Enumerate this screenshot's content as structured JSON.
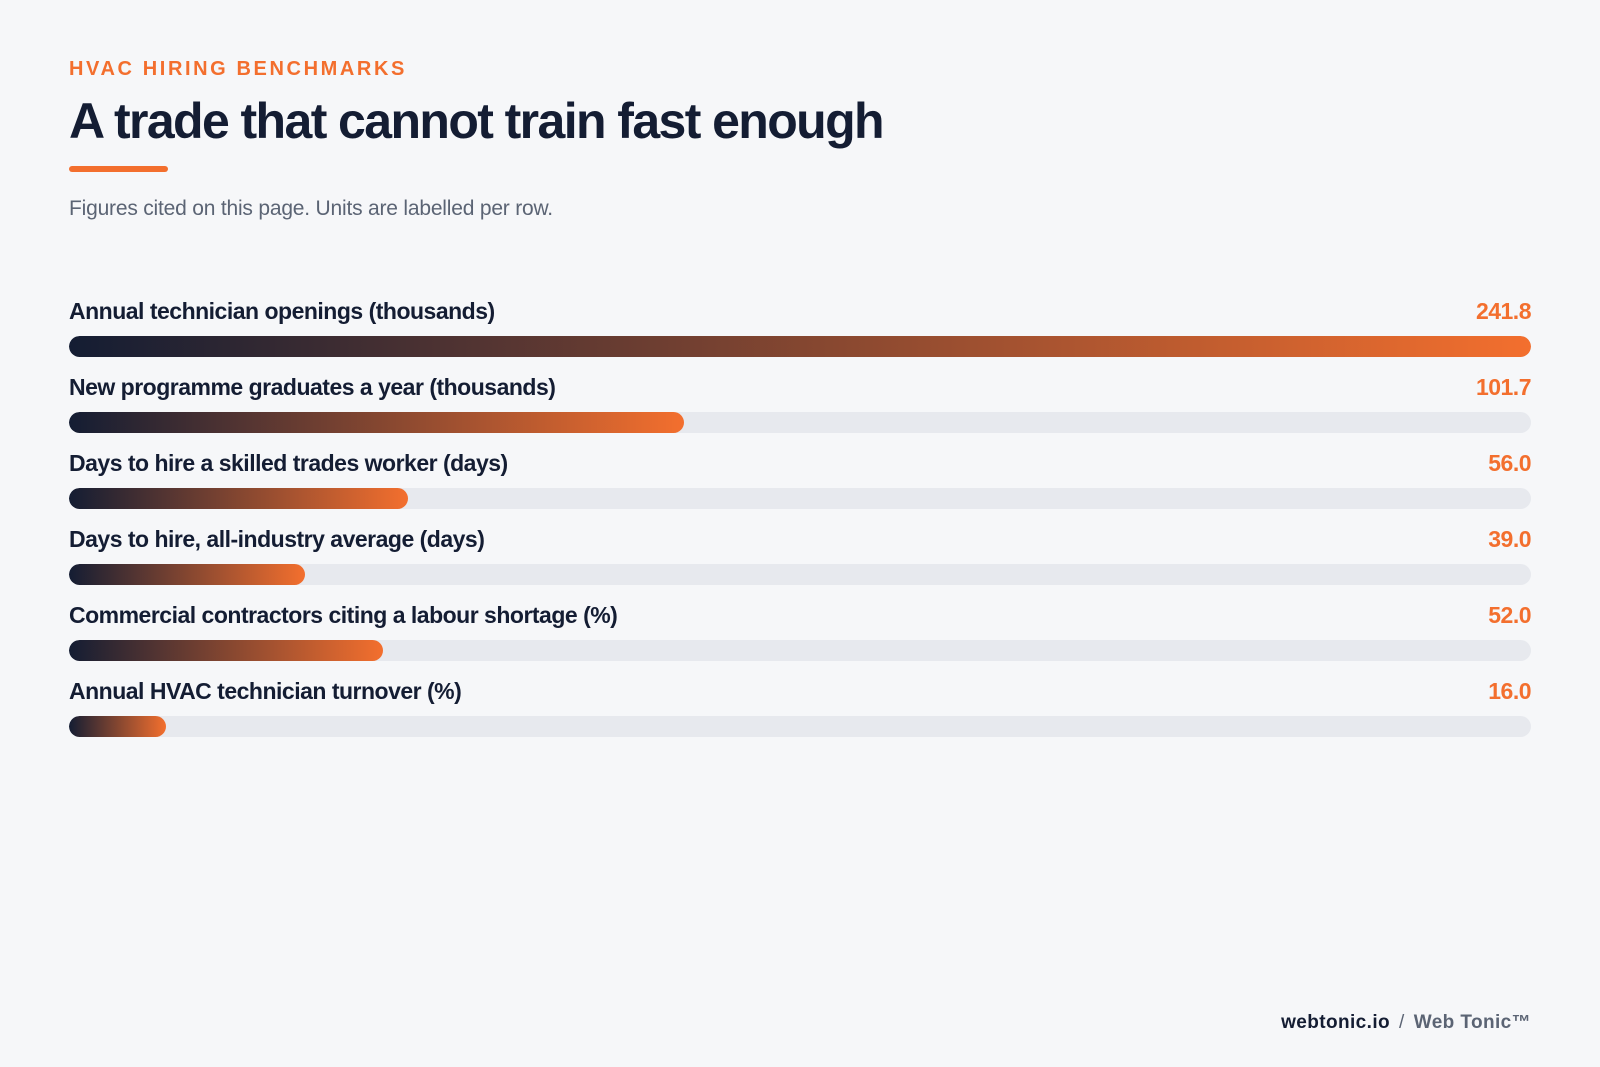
{
  "header": {
    "eyebrow": "HVAC HIRING BENCHMARKS",
    "title": "A trade that cannot train fast enough",
    "subtitle": "Figures cited on this page. Units are labelled per row."
  },
  "colors": {
    "accent": "#f36f2e",
    "dark": "#141d33",
    "track": "#e7e9ee",
    "background": "#f6f7f9"
  },
  "chart_data": {
    "type": "bar",
    "orientation": "horizontal",
    "title": "A trade that cannot train fast enough",
    "scale": "each bar relative to the largest value (241.8)",
    "categories": [
      "Annual technician openings (thousands)",
      "New programme graduates a year (thousands)",
      "Days to hire a skilled trades worker (days)",
      "Days to hire, all-industry average (days)",
      "Commercial contractors citing a labour shortage (%)",
      "Annual HVAC technician turnover (%)"
    ],
    "values": [
      241.8,
      101.7,
      56.0,
      39.0,
      52.0,
      16.0
    ],
    "value_labels": [
      "241.8",
      "101.7",
      "56.0",
      "39.0",
      "52.0",
      "16.0"
    ],
    "xlim": [
      0,
      241.8
    ],
    "grid": false,
    "legend": "none"
  },
  "footer": {
    "site": "webtonic.io",
    "separator": "/",
    "brand": "Web Tonic™"
  }
}
